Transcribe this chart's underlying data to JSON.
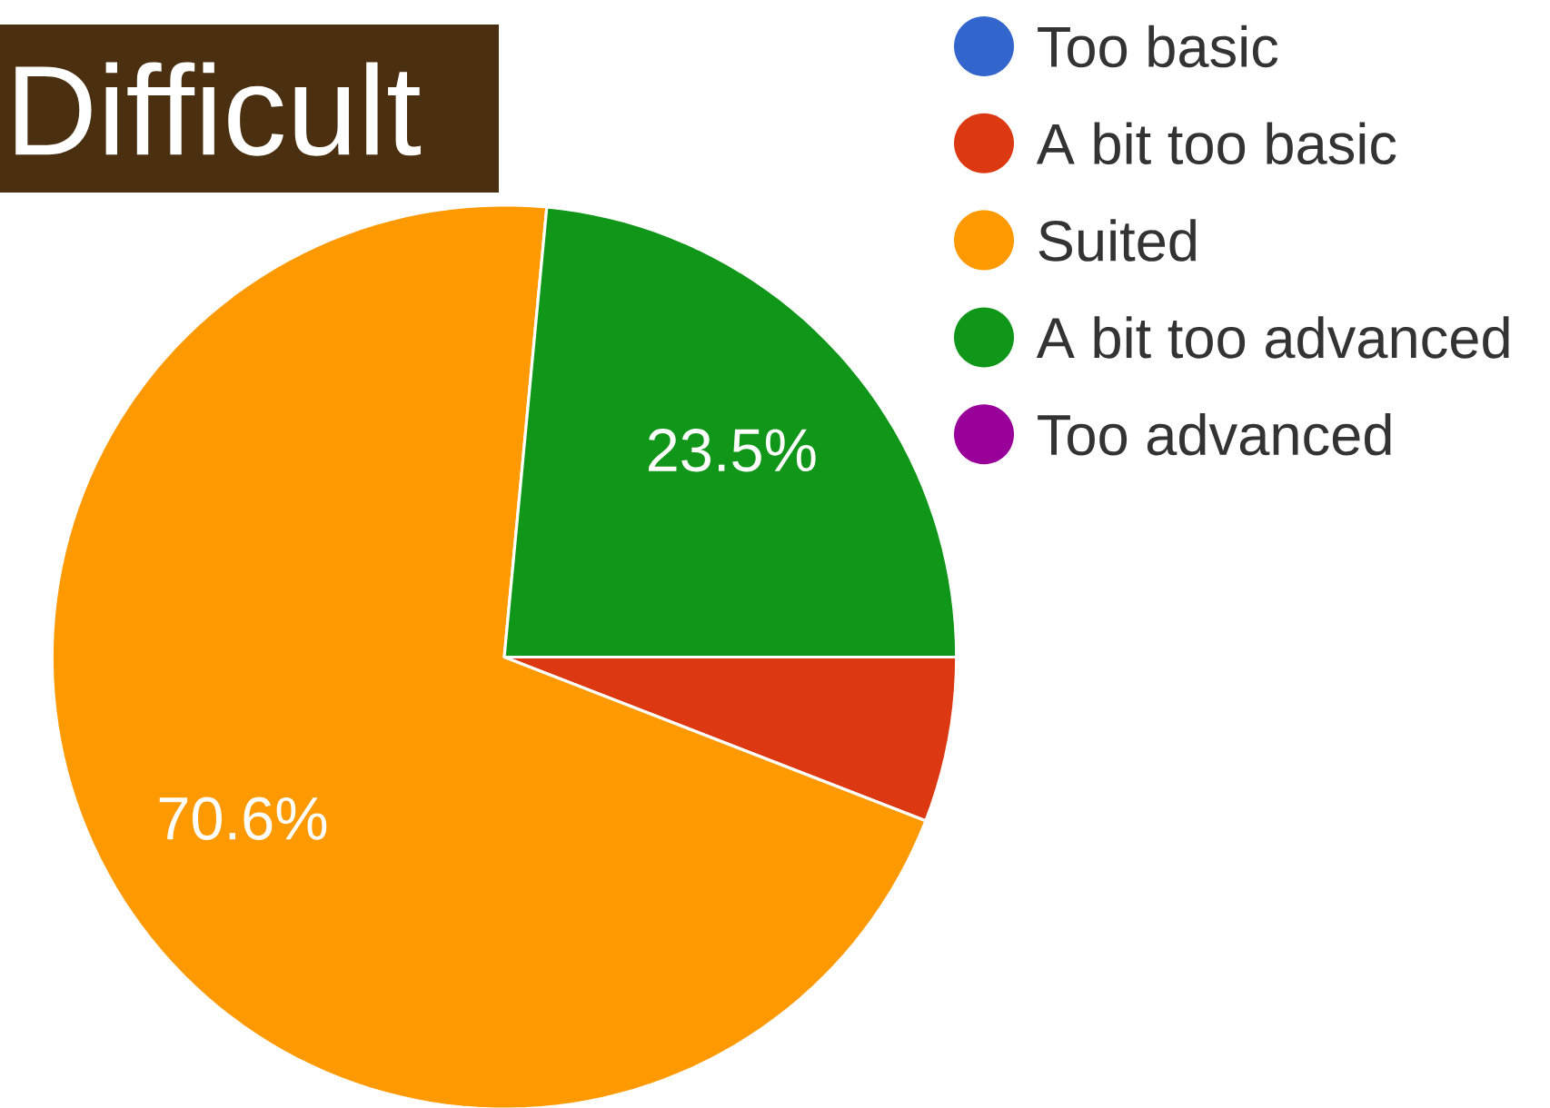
{
  "chart_data": {
    "type": "pie",
    "title": "Difficult",
    "categories": [
      "Too basic",
      "A bit too basic",
      "Suited",
      "A bit too advanced",
      "Too advanced"
    ],
    "values": [
      0,
      5.9,
      70.6,
      23.5,
      0
    ],
    "colors": [
      "#3366cc",
      "#dc3912",
      "#ff9900",
      "#109618",
      "#990099"
    ],
    "value_labels": [
      null,
      null,
      "70.6%",
      "23.5%",
      null
    ],
    "legend": "top right"
  }
}
